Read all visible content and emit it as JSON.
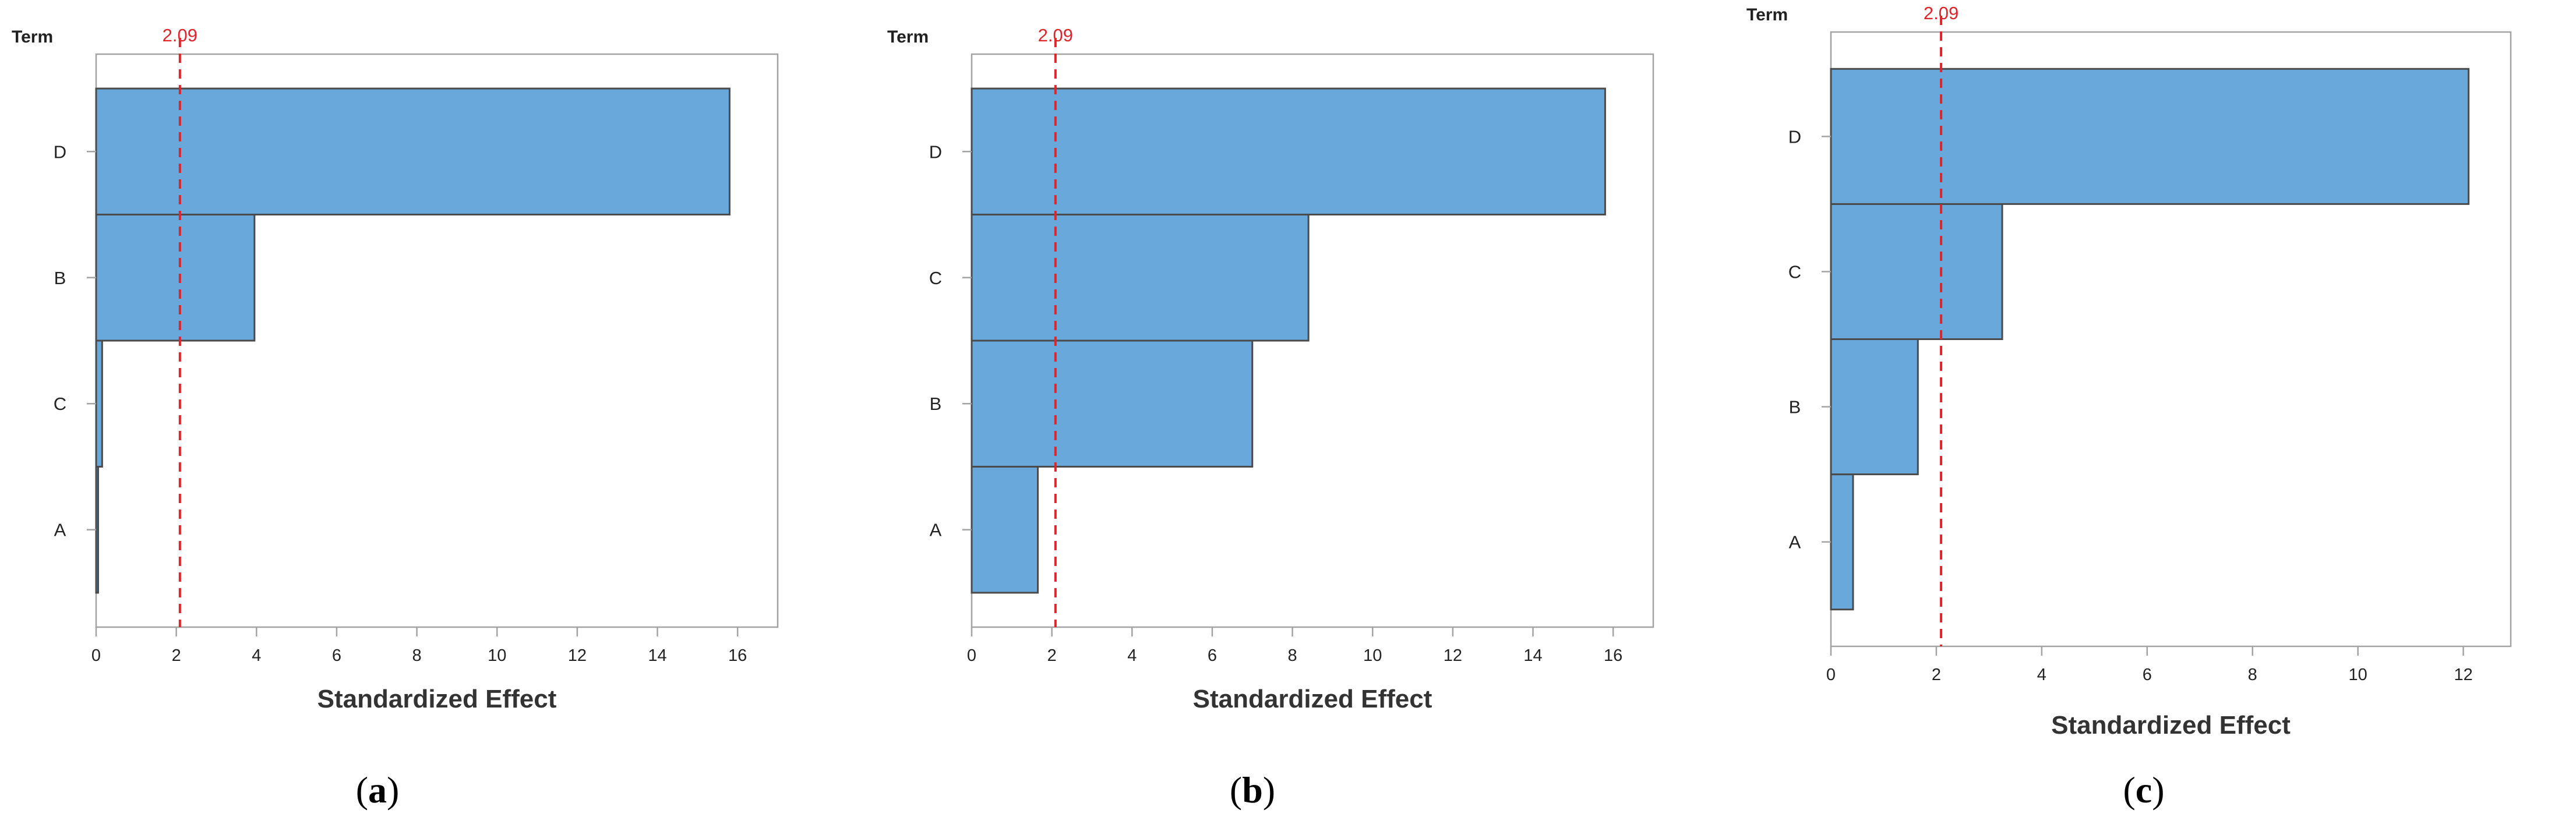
{
  "chart_data": [
    {
      "type": "bar",
      "orientation": "horizontal",
      "panel_label": "a",
      "ylabel": "Term",
      "xlabel": "Standardized Effect",
      "categories": [
        "A",
        "C",
        "B",
        "D"
      ],
      "values": [
        0.05,
        0.15,
        3.95,
        15.8
      ],
      "xlim": [
        0,
        17
      ],
      "xticks": [
        0,
        2,
        4,
        6,
        8,
        10,
        12,
        14,
        16
      ],
      "reference_line": {
        "value": 2.09,
        "label": "2.09",
        "color": "#e0242b"
      },
      "bar_color": "#68a8db",
      "grid": false
    },
    {
      "type": "bar",
      "orientation": "horizontal",
      "panel_label": "b",
      "ylabel": "Term",
      "xlabel": "Standardized Effect",
      "categories": [
        "A",
        "B",
        "C",
        "D"
      ],
      "values": [
        1.65,
        7.0,
        8.4,
        15.8
      ],
      "xlim": [
        0,
        17
      ],
      "xticks": [
        0,
        2,
        4,
        6,
        8,
        10,
        12,
        14,
        16
      ],
      "reference_line": {
        "value": 2.09,
        "label": "2.09",
        "color": "#e0242b"
      },
      "bar_color": "#68a8db",
      "grid": false
    },
    {
      "type": "bar",
      "orientation": "horizontal",
      "panel_label": "c",
      "ylabel": "Term",
      "xlabel": "Standardized Effect",
      "categories": [
        "A",
        "B",
        "C",
        "D"
      ],
      "values": [
        0.42,
        1.65,
        3.25,
        12.1
      ],
      "xlim": [
        0,
        12.9
      ],
      "xticks": [
        0,
        2,
        4,
        6,
        8,
        10,
        12
      ],
      "reference_line": {
        "value": 2.09,
        "label": "2.09",
        "color": "#e0242b"
      },
      "bar_color": "#68a8db",
      "grid": false
    }
  ]
}
